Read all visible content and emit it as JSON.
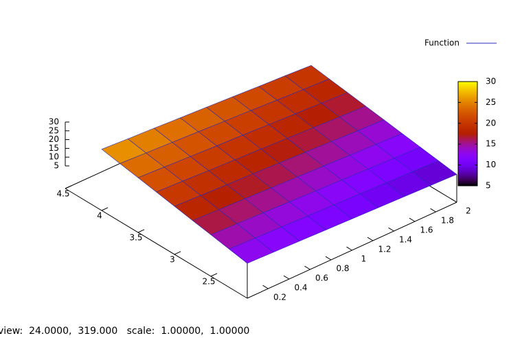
{
  "chart_data": {
    "type": "surface",
    "legend": {
      "label": "Function",
      "color": "#2a2ab8",
      "position": "top-right"
    },
    "x": [
      0,
      0.25,
      0.5,
      0.75,
      1,
      1.25,
      1.5,
      1.75,
      2
    ],
    "y": [
      2,
      2.25,
      2.5,
      2.75,
      3,
      3.25,
      3.5,
      3.75,
      4
    ],
    "z": [
      [
        12.0,
        11.5,
        11.0,
        10.5,
        10.0,
        9.5,
        9.0,
        8.5,
        8.0
      ],
      [
        13.9,
        13.3,
        12.8,
        12.2,
        11.7,
        11.2,
        10.6,
        10.1,
        9.5
      ],
      [
        15.8,
        15.2,
        14.6,
        14.0,
        13.4,
        12.8,
        12.2,
        11.6,
        11.0
      ],
      [
        17.6,
        17.0,
        16.4,
        15.7,
        15.1,
        14.5,
        13.8,
        13.2,
        12.5
      ],
      [
        19.5,
        18.8,
        18.1,
        17.5,
        16.8,
        16.1,
        15.4,
        14.7,
        14.1
      ],
      [
        21.4,
        20.7,
        19.9,
        19.2,
        18.5,
        17.8,
        17.0,
        16.3,
        15.6
      ],
      [
        23.3,
        22.5,
        21.7,
        20.9,
        20.2,
        19.4,
        18.6,
        17.9,
        17.1
      ],
      [
        25.1,
        24.3,
        23.5,
        22.7,
        21.9,
        21.1,
        20.2,
        19.4,
        18.6
      ],
      [
        27.0,
        26.1,
        25.3,
        24.4,
        23.6,
        22.7,
        21.8,
        21.0,
        20.1
      ]
    ],
    "xlim": [
      0,
      2
    ],
    "xticks": [
      0.2,
      0.4,
      0.6,
      0.8,
      1,
      1.2,
      1.4,
      1.6,
      1.8,
      2
    ],
    "ylim": [
      2,
      4.5
    ],
    "yticks": [
      2.5,
      3,
      3.5,
      4,
      4.5
    ],
    "zlim": [
      5,
      30
    ],
    "zticks": [
      5,
      10,
      15,
      20,
      25,
      30
    ],
    "cblim": [
      5,
      30
    ],
    "cbticks": [
      5,
      10,
      15,
      20,
      25,
      30
    ]
  },
  "status_bar": {
    "text": "view:  24.0000,  319.000   scale:  1.00000,  1.00000"
  }
}
